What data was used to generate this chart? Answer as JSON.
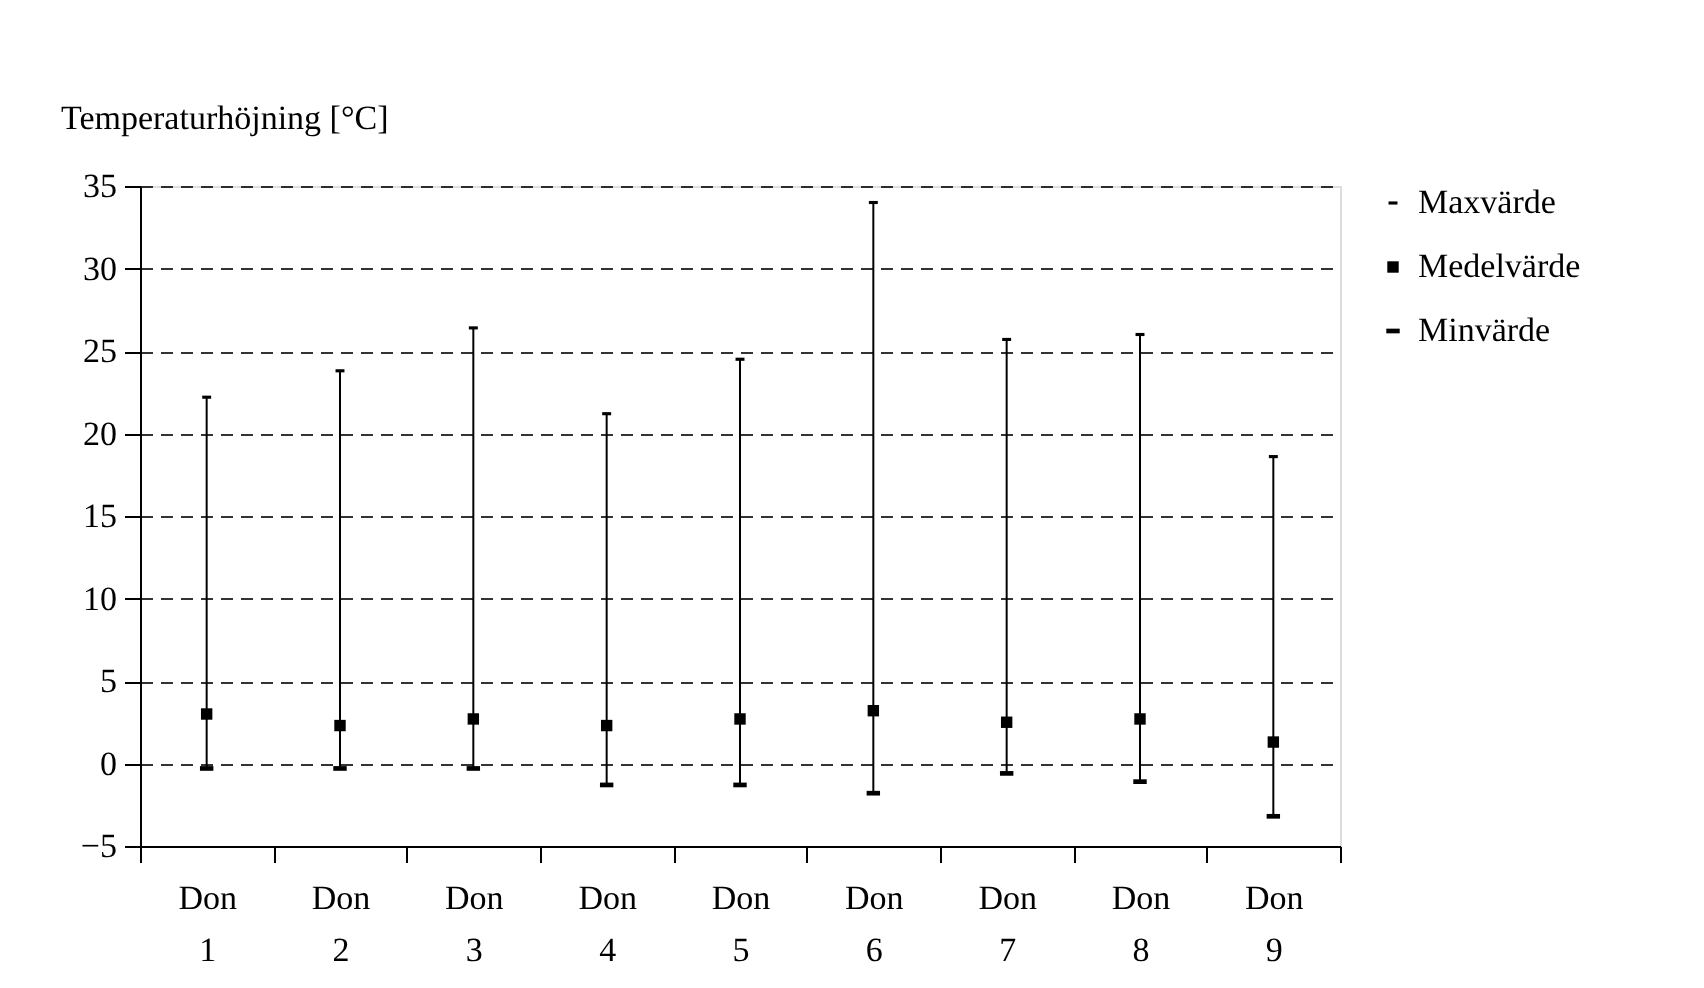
{
  "chart_data": {
    "type": "scatter",
    "ylabel": "Temperaturhöjning [°C]",
    "categories": [
      "Don 1",
      "Don 2",
      "Don 3",
      "Don 4",
      "Don 5",
      "Don 6",
      "Don 7",
      "Don 8",
      "Don 9"
    ],
    "series": [
      {
        "name": "Maxvärde",
        "color": "#000000",
        "values": [
          22.2,
          23.8,
          26.4,
          21.2,
          24.5,
          34.0,
          25.7,
          26.0,
          18.6
        ]
      },
      {
        "name": "Medelvärde",
        "color": "#000000",
        "marker": "square",
        "values": [
          3.0,
          2.3,
          2.7,
          2.3,
          2.7,
          3.2,
          2.5,
          2.7,
          1.3
        ]
      },
      {
        "name": "Minvärde",
        "color": "#000000",
        "values": [
          -0.3,
          -0.3,
          -0.3,
          -1.3,
          -1.3,
          -1.8,
          -0.6,
          -1.1,
          -3.2
        ]
      }
    ],
    "ylim": [
      -5,
      35
    ],
    "yticks": [
      -5,
      0,
      5,
      10,
      15,
      20,
      25,
      30,
      35
    ],
    "grid": "y",
    "legend": "right"
  }
}
